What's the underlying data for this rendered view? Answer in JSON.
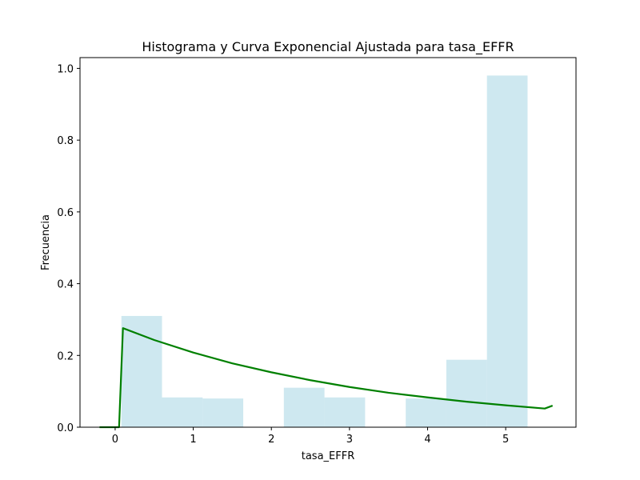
{
  "chart_data": {
    "type": "bar",
    "title": "Histograma y Curva Exponencial Ajustada para tasa_EFFR",
    "xlabel": "tasa_EFFR",
    "ylabel": "Frecuencia",
    "xlim": [
      -0.45,
      5.9
    ],
    "ylim": [
      0,
      1.03
    ],
    "xticks": [
      0,
      1,
      2,
      3,
      4,
      5
    ],
    "yticks": [
      0.0,
      0.2,
      0.4,
      0.6,
      0.8,
      1.0
    ],
    "ytick_labels": [
      "0.0",
      "0.2",
      "0.4",
      "0.6",
      "0.8",
      "1.0"
    ],
    "grid": false,
    "histogram": {
      "color": "#add8e6",
      "bins": [
        {
          "x0": 0.08,
          "x1": 0.6,
          "value": 0.31
        },
        {
          "x0": 0.6,
          "x1": 1.12,
          "value": 0.083
        },
        {
          "x0": 1.12,
          "x1": 1.64,
          "value": 0.08
        },
        {
          "x0": 1.64,
          "x1": 2.16,
          "value": 0.0
        },
        {
          "x0": 2.16,
          "x1": 2.68,
          "value": 0.11
        },
        {
          "x0": 2.68,
          "x1": 3.2,
          "value": 0.083
        },
        {
          "x0": 3.2,
          "x1": 3.72,
          "value": 0.0
        },
        {
          "x0": 3.72,
          "x1": 4.24,
          "value": 0.08
        },
        {
          "x0": 4.24,
          "x1": 4.76,
          "value": 0.188
        },
        {
          "x0": 4.76,
          "x1": 5.28,
          "value": 0.98
        }
      ]
    },
    "curve": {
      "color": "#008000",
      "x": [
        -0.2,
        0.05,
        0.1,
        0.5,
        1.0,
        1.5,
        2.0,
        2.5,
        3.0,
        3.5,
        4.0,
        4.5,
        5.0,
        5.5,
        5.6
      ],
      "y": [
        0.0,
        0.0,
        0.276,
        0.243,
        0.208,
        0.178,
        0.153,
        0.131,
        0.112,
        0.096,
        0.083,
        0.071,
        0.061,
        0.052,
        0.06
      ]
    }
  }
}
